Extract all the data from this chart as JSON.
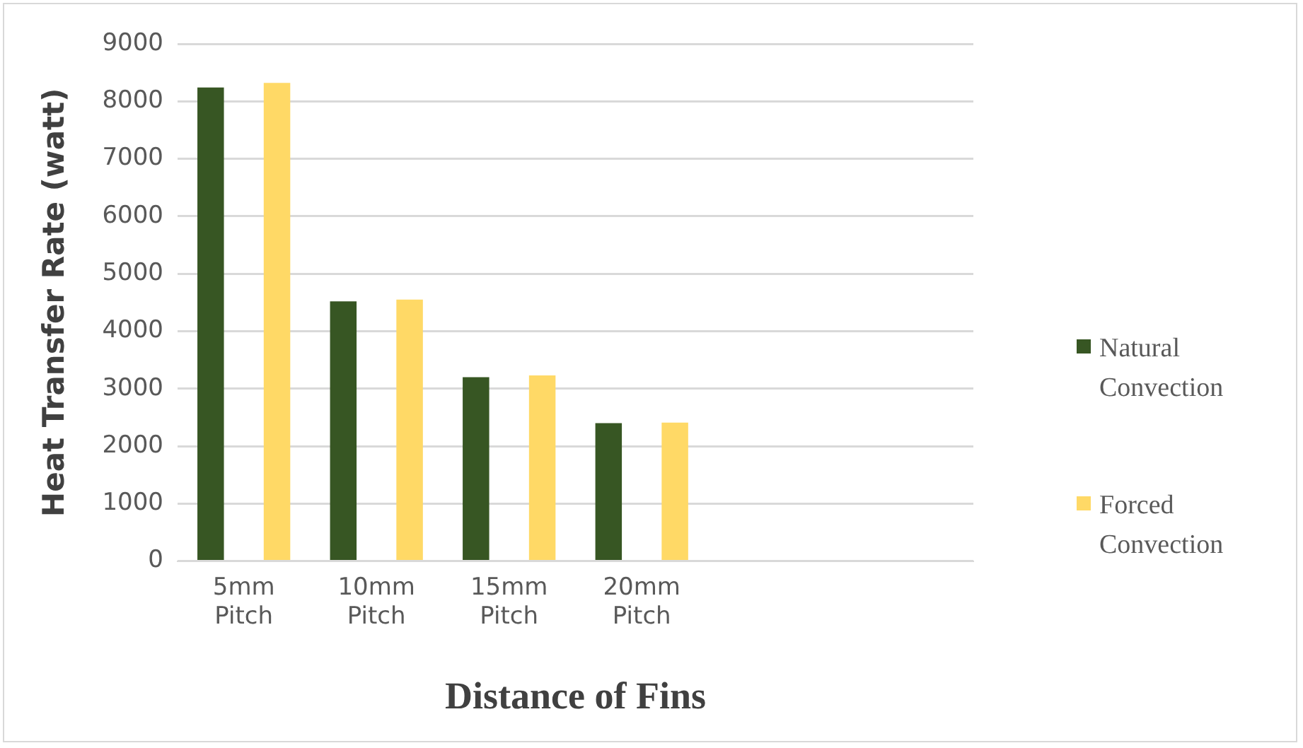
{
  "chart_data": {
    "type": "bar",
    "xlabel": "Distance of Fins",
    "ylabel": "Heat Transfer Rate (watt)",
    "categories": [
      "5mm Pitch",
      "10mm Pitch",
      "15mm Pitch",
      "20mm Pitch",
      null,
      null
    ],
    "series": [
      {
        "name": "Natural Convection",
        "color": "#375623",
        "values": [
          8240,
          4520,
          3200,
          2400,
          null,
          null
        ]
      },
      {
        "name": "Forced Convection",
        "color": "#ffd966",
        "values": [
          8320,
          4550,
          3230,
          2410,
          null,
          null
        ]
      }
    ],
    "ylim": [
      0,
      9000
    ],
    "yticks": [
      0,
      1000,
      2000,
      3000,
      4000,
      5000,
      6000,
      7000,
      8000,
      9000
    ],
    "grid": "y",
    "legend": "right"
  }
}
